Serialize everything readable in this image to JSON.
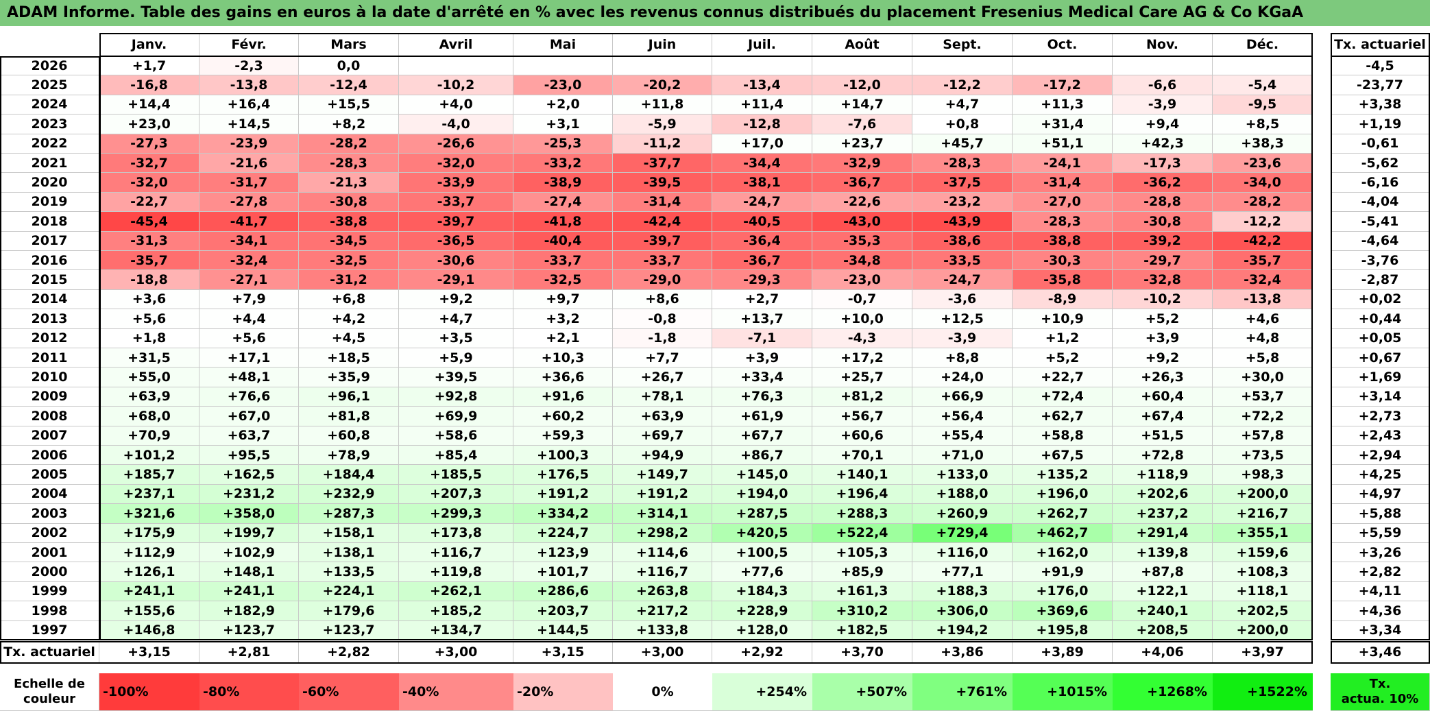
{
  "title": "ADAM Informe. Table des gains en euros à la date d'arrêté en % avec les revenus connus distribués du placement Fresenius Medical Care AG & Co KGaA",
  "chart_data": {
    "type": "table",
    "columns": [
      "Janv.",
      "Févr.",
      "Mars",
      "Avril",
      "Mai",
      "Juin",
      "Juil.",
      "Août",
      "Sept.",
      "Oct.",
      "Nov.",
      "Déc."
    ],
    "rate_header": "Tx. actuariel",
    "rows": [
      {
        "year": "2026",
        "values": [
          "+1,7",
          "-2,3",
          "0,0",
          "",
          "",
          "",
          "",
          "",
          "",
          "",
          "",
          ""
        ],
        "rate": "-4,5"
      },
      {
        "year": "2025",
        "values": [
          "-16,8",
          "-13,8",
          "-12,4",
          "-10,2",
          "-23,0",
          "-20,2",
          "-13,4",
          "-12,0",
          "-12,2",
          "-17,2",
          "-6,6",
          "-5,4"
        ],
        "rate": "-23,77"
      },
      {
        "year": "2024",
        "values": [
          "+14,4",
          "+16,4",
          "+15,5",
          "+4,0",
          "+2,0",
          "+11,8",
          "+11,4",
          "+14,7",
          "+4,7",
          "+11,3",
          "-3,9",
          "-9,5"
        ],
        "rate": "+3,38"
      },
      {
        "year": "2023",
        "values": [
          "+23,0",
          "+14,5",
          "+8,2",
          "-4,0",
          "+3,1",
          "-5,9",
          "-12,8",
          "-7,6",
          "+0,8",
          "+31,4",
          "+9,4",
          "+8,5"
        ],
        "rate": "+1,19"
      },
      {
        "year": "2022",
        "values": [
          "-27,3",
          "-23,9",
          "-28,2",
          "-26,6",
          "-25,3",
          "-11,2",
          "+17,0",
          "+23,7",
          "+45,7",
          "+51,1",
          "+42,3",
          "+38,3"
        ],
        "rate": "-0,61"
      },
      {
        "year": "2021",
        "values": [
          "-32,7",
          "-21,6",
          "-28,3",
          "-32,0",
          "-33,2",
          "-37,7",
          "-34,4",
          "-32,9",
          "-28,3",
          "-24,1",
          "-17,3",
          "-23,6"
        ],
        "rate": "-5,62"
      },
      {
        "year": "2020",
        "values": [
          "-32,0",
          "-31,7",
          "-21,3",
          "-33,9",
          "-38,9",
          "-39,5",
          "-38,1",
          "-36,7",
          "-37,5",
          "-31,4",
          "-36,2",
          "-34,0"
        ],
        "rate": "-6,16"
      },
      {
        "year": "2019",
        "values": [
          "-22,7",
          "-27,8",
          "-30,8",
          "-33,7",
          "-27,4",
          "-31,4",
          "-24,7",
          "-22,6",
          "-23,2",
          "-27,0",
          "-28,8",
          "-28,2"
        ],
        "rate": "-4,04"
      },
      {
        "year": "2018",
        "values": [
          "-45,4",
          "-41,7",
          "-38,8",
          "-39,7",
          "-41,8",
          "-42,4",
          "-40,5",
          "-43,0",
          "-43,9",
          "-28,3",
          "-30,8",
          "-12,2"
        ],
        "rate": "-5,41"
      },
      {
        "year": "2017",
        "values": [
          "-31,3",
          "-34,1",
          "-34,5",
          "-36,5",
          "-40,4",
          "-39,7",
          "-36,4",
          "-35,3",
          "-38,6",
          "-38,8",
          "-39,2",
          "-42,2"
        ],
        "rate": "-4,64"
      },
      {
        "year": "2016",
        "values": [
          "-35,7",
          "-32,4",
          "-32,5",
          "-30,6",
          "-33,7",
          "-33,7",
          "-36,7",
          "-34,8",
          "-33,5",
          "-30,3",
          "-29,7",
          "-35,7"
        ],
        "rate": "-3,76"
      },
      {
        "year": "2015",
        "values": [
          "-18,8",
          "-27,1",
          "-31,2",
          "-29,1",
          "-32,5",
          "-29,0",
          "-29,3",
          "-23,0",
          "-24,7",
          "-35,8",
          "-32,8",
          "-32,4"
        ],
        "rate": "-2,87"
      },
      {
        "year": "2014",
        "values": [
          "+3,6",
          "+7,9",
          "+6,8",
          "+9,2",
          "+9,7",
          "+8,6",
          "+2,7",
          "-0,7",
          "-3,6",
          "-8,9",
          "-10,2",
          "-13,8"
        ],
        "rate": "+0,02"
      },
      {
        "year": "2013",
        "values": [
          "+5,6",
          "+4,4",
          "+4,2",
          "+4,7",
          "+3,2",
          "-0,8",
          "+13,7",
          "+10,0",
          "+12,5",
          "+10,9",
          "+5,2",
          "+4,6"
        ],
        "rate": "+0,44"
      },
      {
        "year": "2012",
        "values": [
          "+1,8",
          "+5,6",
          "+4,5",
          "+3,5",
          "+2,1",
          "-1,8",
          "-7,1",
          "-4,3",
          "-3,9",
          "+1,2",
          "+3,9",
          "+4,8"
        ],
        "rate": "+0,05"
      },
      {
        "year": "2011",
        "values": [
          "+31,5",
          "+17,1",
          "+18,5",
          "+5,9",
          "+10,3",
          "+7,7",
          "+3,9",
          "+17,2",
          "+8,8",
          "+5,2",
          "+9,2",
          "+5,8"
        ],
        "rate": "+0,67"
      },
      {
        "year": "2010",
        "values": [
          "+55,0",
          "+48,1",
          "+35,9",
          "+39,5",
          "+36,6",
          "+26,7",
          "+33,4",
          "+25,7",
          "+24,0",
          "+22,7",
          "+26,3",
          "+30,0"
        ],
        "rate": "+1,69"
      },
      {
        "year": "2009",
        "values": [
          "+63,9",
          "+76,6",
          "+96,1",
          "+92,8",
          "+91,6",
          "+78,1",
          "+76,3",
          "+81,2",
          "+66,9",
          "+72,4",
          "+60,4",
          "+53,7"
        ],
        "rate": "+3,14"
      },
      {
        "year": "2008",
        "values": [
          "+68,0",
          "+67,0",
          "+81,8",
          "+69,9",
          "+60,2",
          "+63,9",
          "+61,9",
          "+56,7",
          "+56,4",
          "+62,7",
          "+67,4",
          "+72,2"
        ],
        "rate": "+2,73"
      },
      {
        "year": "2007",
        "values": [
          "+70,9",
          "+63,7",
          "+60,8",
          "+58,6",
          "+59,3",
          "+69,7",
          "+67,7",
          "+60,6",
          "+55,4",
          "+58,8",
          "+51,5",
          "+57,8"
        ],
        "rate": "+2,43"
      },
      {
        "year": "2006",
        "values": [
          "+101,2",
          "+95,5",
          "+78,9",
          "+85,4",
          "+100,3",
          "+94,9",
          "+86,7",
          "+70,1",
          "+71,0",
          "+67,5",
          "+72,8",
          "+73,5"
        ],
        "rate": "+2,94"
      },
      {
        "year": "2005",
        "values": [
          "+185,7",
          "+162,5",
          "+184,4",
          "+185,5",
          "+176,5",
          "+149,7",
          "+145,0",
          "+140,1",
          "+133,0",
          "+135,2",
          "+118,9",
          "+98,3"
        ],
        "rate": "+4,25"
      },
      {
        "year": "2004",
        "values": [
          "+237,1",
          "+231,2",
          "+232,9",
          "+207,3",
          "+191,2",
          "+191,2",
          "+194,0",
          "+196,4",
          "+188,0",
          "+196,0",
          "+202,6",
          "+200,0"
        ],
        "rate": "+4,97"
      },
      {
        "year": "2003",
        "values": [
          "+321,6",
          "+358,0",
          "+287,3",
          "+299,3",
          "+334,2",
          "+314,1",
          "+287,5",
          "+288,3",
          "+260,9",
          "+262,7",
          "+237,2",
          "+216,7"
        ],
        "rate": "+5,88"
      },
      {
        "year": "2002",
        "values": [
          "+175,9",
          "+199,7",
          "+158,1",
          "+173,8",
          "+224,7",
          "+298,2",
          "+420,5",
          "+522,4",
          "+729,4",
          "+462,7",
          "+291,4",
          "+355,1"
        ],
        "rate": "+5,59"
      },
      {
        "year": "2001",
        "values": [
          "+112,9",
          "+102,9",
          "+138,1",
          "+116,7",
          "+123,9",
          "+114,6",
          "+100,5",
          "+105,3",
          "+116,0",
          "+162,0",
          "+139,8",
          "+159,6"
        ],
        "rate": "+3,26"
      },
      {
        "year": "2000",
        "values": [
          "+126,1",
          "+148,1",
          "+133,5",
          "+119,8",
          "+101,7",
          "+116,7",
          "+77,6",
          "+85,9",
          "+77,1",
          "+91,9",
          "+87,8",
          "+108,3"
        ],
        "rate": "+2,82"
      },
      {
        "year": "1999",
        "values": [
          "+241,1",
          "+241,1",
          "+224,1",
          "+262,1",
          "+286,6",
          "+263,8",
          "+184,3",
          "+161,3",
          "+188,3",
          "+176,0",
          "+122,1",
          "+118,1"
        ],
        "rate": "+4,11"
      },
      {
        "year": "1998",
        "values": [
          "+155,6",
          "+182,9",
          "+179,6",
          "+185,2",
          "+203,7",
          "+217,2",
          "+228,9",
          "+310,2",
          "+306,0",
          "+369,6",
          "+240,1",
          "+202,5"
        ],
        "rate": "+4,36"
      },
      {
        "year": "1997",
        "values": [
          "+146,8",
          "+123,7",
          "+123,7",
          "+134,7",
          "+144,5",
          "+133,8",
          "+128,0",
          "+182,5",
          "+194,2",
          "+195,8",
          "+208,5",
          "+200,0"
        ],
        "rate": "+3,34"
      }
    ],
    "summary_row": {
      "label": "Tx. actuariel",
      "values": [
        "+3,15",
        "+2,81",
        "+2,82",
        "+3,00",
        "+3,15",
        "+3,00",
        "+2,92",
        "+3,70",
        "+3,86",
        "+3,89",
        "+4,06",
        "+3,97"
      ],
      "rate": "+3,46"
    },
    "color_scale": {
      "label_line1": "Echelle de",
      "label_line2": "couleur",
      "stops": [
        {
          "label": "-100%",
          "color": "#ff3b3b"
        },
        {
          "label": "-80%",
          "color": "#ff4d4d"
        },
        {
          "label": "-60%",
          "color": "#ff5f5f"
        },
        {
          "label": "-40%",
          "color": "#ff8a8a"
        },
        {
          "label": "-20%",
          "color": "#ffc2c2"
        },
        {
          "label": "0%",
          "color": "#ffffff"
        },
        {
          "label": "+254%",
          "color": "#d9ffd9"
        },
        {
          "label": "+507%",
          "color": "#a9ffa9"
        },
        {
          "label": "+761%",
          "color": "#80ff80"
        },
        {
          "label": "+1015%",
          "color": "#55ff55"
        },
        {
          "label": "+1268%",
          "color": "#33ff33"
        },
        {
          "label": "+1522%",
          "color": "#11ee11"
        }
      ],
      "rate_label_line1": "Tx.",
      "rate_label_line2": "actua. 10%",
      "rate_color": "#22ee22"
    }
  }
}
